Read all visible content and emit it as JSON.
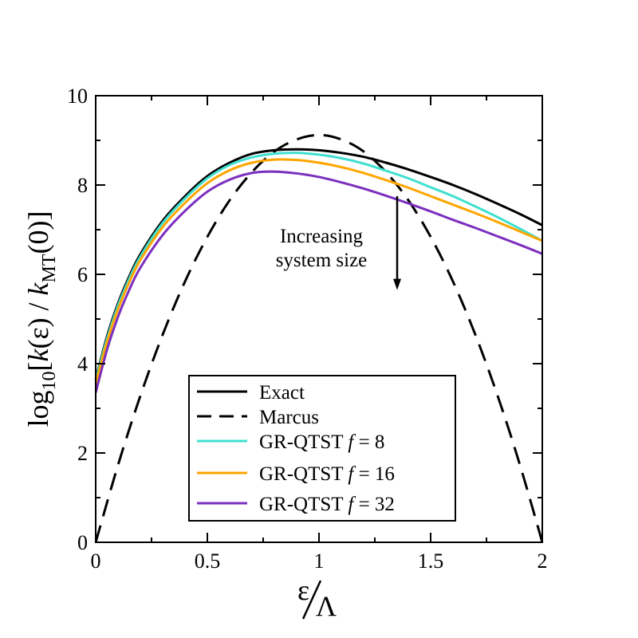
{
  "chart_data": {
    "type": "line",
    "xlim": [
      0,
      2
    ],
    "ylim": [
      0,
      10
    ],
    "x_ticks": [
      0,
      0.5,
      1,
      1.5,
      2
    ],
    "x_tick_labels": [
      "0",
      "0.5",
      "1",
      "1.5",
      "2"
    ],
    "y_ticks": [
      0,
      2,
      4,
      6,
      8,
      10
    ],
    "y_tick_labels": [
      "0",
      "2",
      "4",
      "6",
      "8",
      "10"
    ],
    "xlabel": {
      "numerator": "ε",
      "denominator": "Λ"
    },
    "ylabel": {
      "prefix": "log",
      "sub": "10",
      "open": "[",
      "k1": "k",
      "arg1": "(ε)",
      "slash": " / ",
      "k2": "k",
      "sub2": "MT",
      "arg2": "(0)",
      "close": "]"
    },
    "annotation": {
      "line1": "Increasing",
      "line2": "system size",
      "arrow_from": [
        1.35,
        7.75
      ],
      "arrow_to": [
        1.35,
        5.65
      ]
    },
    "series": [
      {
        "name": "Exact",
        "legend": {
          "text": "Exact",
          "f": null
        },
        "color": "#000000",
        "dash": "solid",
        "x": [
          0,
          0.05,
          0.1,
          0.15,
          0.2,
          0.3,
          0.4,
          0.5,
          0.6,
          0.7,
          0.8,
          0.9,
          1.0,
          1.1,
          1.2,
          1.3,
          1.4,
          1.5,
          1.6,
          1.7,
          1.8,
          1.9,
          2.0
        ],
        "values": [
          3.65,
          4.6,
          5.35,
          5.95,
          6.45,
          7.2,
          7.75,
          8.2,
          8.5,
          8.7,
          8.78,
          8.8,
          8.78,
          8.72,
          8.63,
          8.5,
          8.35,
          8.18,
          8.0,
          7.8,
          7.58,
          7.35,
          7.1
        ]
      },
      {
        "name": "Marcus",
        "legend": {
          "text": "Marcus",
          "f": null
        },
        "color": "#000000",
        "dash": "dashed",
        "x": [
          0,
          0.1,
          0.2,
          0.3,
          0.4,
          0.5,
          0.6,
          0.7,
          0.8,
          0.9,
          1.0,
          1.1,
          1.2,
          1.3,
          1.4,
          1.5,
          1.6,
          1.7,
          1.8,
          1.9,
          2.0
        ],
        "values": [
          0.0,
          1.73,
          3.28,
          4.65,
          5.84,
          6.84,
          7.66,
          8.29,
          8.75,
          9.02,
          9.12,
          9.02,
          8.75,
          8.29,
          7.66,
          6.84,
          5.84,
          4.65,
          3.28,
          1.73,
          0.0
        ]
      },
      {
        "name": "GR-QTST f = 8",
        "legend": {
          "text": "GR-QTST",
          "f": "f",
          "eq": " = 8"
        },
        "color": "#40e0d0",
        "dash": "solid",
        "x": [
          0,
          0.05,
          0.1,
          0.15,
          0.2,
          0.3,
          0.4,
          0.5,
          0.6,
          0.7,
          0.8,
          0.9,
          1.0,
          1.1,
          1.2,
          1.3,
          1.4,
          1.5,
          1.6,
          1.7,
          1.8,
          1.9,
          2.0
        ],
        "values": [
          3.62,
          4.55,
          5.3,
          5.9,
          6.4,
          7.15,
          7.7,
          8.15,
          8.45,
          8.62,
          8.7,
          8.72,
          8.68,
          8.6,
          8.48,
          8.32,
          8.15,
          7.95,
          7.75,
          7.52,
          7.28,
          7.02,
          6.75
        ]
      },
      {
        "name": "GR-QTST f = 16",
        "legend": {
          "text": "GR-QTST",
          "f": "f",
          "eq": " = 16"
        },
        "color": "#ffa500",
        "dash": "solid",
        "x": [
          0,
          0.05,
          0.1,
          0.15,
          0.2,
          0.3,
          0.4,
          0.5,
          0.6,
          0.7,
          0.8,
          0.9,
          1.0,
          1.1,
          1.2,
          1.3,
          1.4,
          1.5,
          1.6,
          1.7,
          1.8,
          1.9,
          2.0
        ],
        "values": [
          3.55,
          4.48,
          5.22,
          5.82,
          6.32,
          7.06,
          7.6,
          8.04,
          8.33,
          8.5,
          8.57,
          8.56,
          8.5,
          8.4,
          8.27,
          8.11,
          7.94,
          7.75,
          7.56,
          7.37,
          7.17,
          6.96,
          6.75
        ]
      },
      {
        "name": "GR-QTST f = 32",
        "legend": {
          "text": "GR-QTST",
          "f": "f",
          "eq": " = 32"
        },
        "color": "#7b2fbe",
        "dash": "solid",
        "x": [
          0,
          0.05,
          0.1,
          0.15,
          0.2,
          0.3,
          0.4,
          0.5,
          0.6,
          0.7,
          0.8,
          0.9,
          1.0,
          1.1,
          1.2,
          1.3,
          1.4,
          1.5,
          1.6,
          1.7,
          1.8,
          1.9,
          2.0
        ],
        "values": [
          3.35,
          4.3,
          5.05,
          5.65,
          6.15,
          6.88,
          7.42,
          7.85,
          8.12,
          8.27,
          8.3,
          8.26,
          8.18,
          8.06,
          7.92,
          7.76,
          7.59,
          7.41,
          7.22,
          7.04,
          6.85,
          6.66,
          6.46
        ]
      }
    ]
  }
}
